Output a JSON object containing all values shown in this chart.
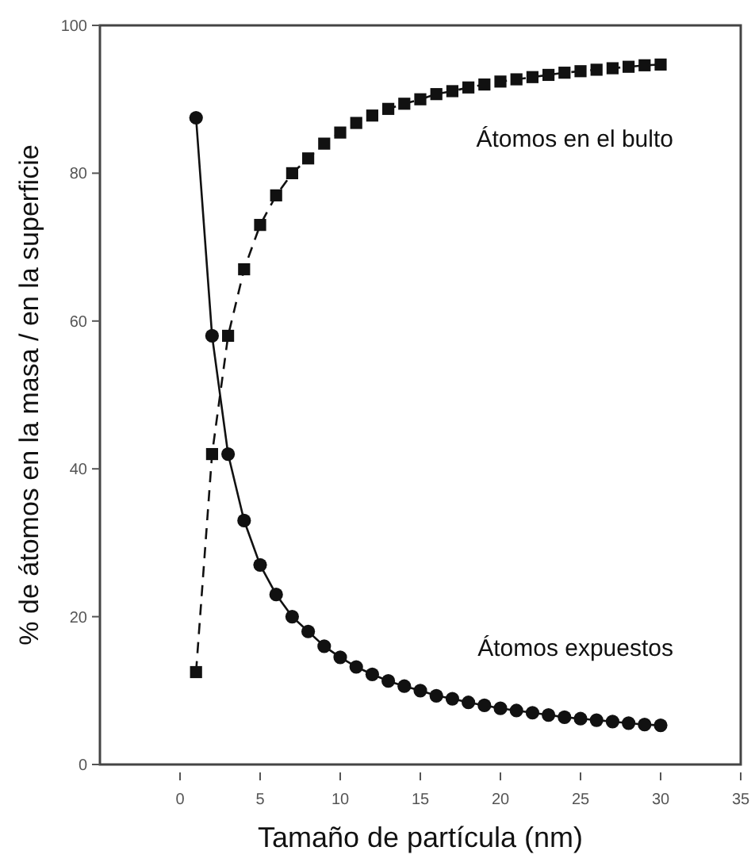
{
  "chart_data": {
    "type": "line",
    "xlabel": "Tamaño de partícula (nm)",
    "ylabel": "% de átomos en la masa / en la superficie",
    "x": [
      1,
      2,
      3,
      4,
      5,
      6,
      7,
      8,
      9,
      10,
      11,
      12,
      13,
      14,
      15,
      16,
      17,
      18,
      19,
      20,
      21,
      22,
      23,
      24,
      25,
      26,
      27,
      28,
      29,
      30
    ],
    "series": [
      {
        "name": "Átomos expuestos",
        "color": "#111111",
        "marker": "circle",
        "line_style": "solid",
        "values": [
          87.5,
          58,
          42,
          33,
          27,
          23,
          20,
          18,
          16,
          14.5,
          13.2,
          12.2,
          11.3,
          10.6,
          10,
          9.3,
          8.9,
          8.4,
          8,
          7.6,
          7.3,
          7,
          6.7,
          6.4,
          6.2,
          6,
          5.8,
          5.6,
          5.4,
          5.3
        ]
      },
      {
        "name": "Átomos en el bulto",
        "color": "#111111",
        "marker": "square",
        "line_style": "dashed",
        "values": [
          12.5,
          42,
          58,
          67,
          73,
          77,
          80,
          82,
          84,
          85.5,
          86.8,
          87.8,
          88.7,
          89.4,
          90,
          90.7,
          91.1,
          91.6,
          92,
          92.4,
          92.7,
          93,
          93.3,
          93.6,
          93.8,
          94,
          94.2,
          94.4,
          94.6,
          94.7
        ]
      }
    ],
    "xlim": [
      -5,
      35
    ],
    "xticks": [
      0,
      5,
      10,
      15,
      20,
      25,
      30,
      35
    ],
    "ylim": [
      0,
      100
    ],
    "yticks": [
      0,
      20,
      40,
      60,
      80,
      100
    ],
    "grid": false
  }
}
